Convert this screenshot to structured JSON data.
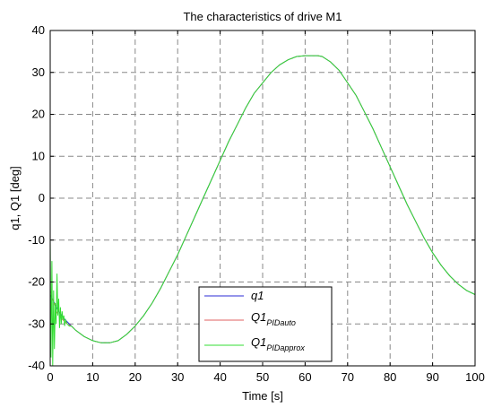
{
  "chart_data": {
    "type": "line",
    "title": "The characteristics of drive M1",
    "xlabel": "Time [s]",
    "ylabel": "q1, Q1 [deg]",
    "xlim": [
      0,
      100
    ],
    "ylim": [
      -40,
      40
    ],
    "xticks": [
      0,
      10,
      20,
      30,
      40,
      50,
      60,
      70,
      80,
      90,
      100
    ],
    "yticks": [
      -40,
      -30,
      -20,
      -10,
      0,
      10,
      20,
      30,
      40
    ],
    "grid": true,
    "legend_position": "bottom-center",
    "series": [
      {
        "name": "q1",
        "legend_main": "q1",
        "legend_sub": "",
        "color": "#2b2bd6",
        "x": [
          0,
          1,
          2,
          3,
          4,
          5,
          6,
          8,
          10,
          12,
          14,
          16,
          18,
          20,
          22,
          24,
          26,
          28,
          30,
          32,
          34,
          36,
          38,
          40,
          42,
          44,
          46,
          48,
          50,
          52,
          54,
          56,
          58,
          60,
          62,
          63,
          64,
          66,
          68,
          70,
          72,
          74,
          76,
          78,
          80,
          82,
          84,
          86,
          88,
          90,
          92,
          94,
          96,
          98,
          100
        ],
        "y": [
          -23,
          -25,
          -27,
          -28.5,
          -29.5,
          -30.5,
          -31.5,
          -33,
          -34,
          -34.5,
          -34.5,
          -34,
          -32.5,
          -30.5,
          -28,
          -25,
          -21.5,
          -17.5,
          -13.5,
          -9,
          -4.5,
          0,
          4.5,
          9,
          13.5,
          17.5,
          21.5,
          25,
          27.5,
          30,
          31.8,
          33,
          33.8,
          34,
          34,
          34,
          33.8,
          32.5,
          30.5,
          27.5,
          24.5,
          20.5,
          16.5,
          12,
          7.5,
          3,
          -1.5,
          -5.5,
          -9.5,
          -13,
          -16,
          -18.5,
          -20.5,
          -22,
          -23
        ]
      },
      {
        "name": "Q1 PIDauto",
        "legend_main": "Q1",
        "legend_sub": "PIDauto",
        "color": "#e06060",
        "x": [
          0,
          0.5,
          1,
          1.5,
          2,
          3,
          4,
          5,
          6,
          8,
          10,
          12,
          14,
          16,
          18,
          20,
          22,
          24,
          26,
          28,
          30,
          32,
          34,
          36,
          38,
          40,
          42,
          44,
          46,
          48,
          50,
          52,
          54,
          56,
          58,
          60,
          62,
          63,
          64,
          66,
          68,
          70,
          72,
          74,
          76,
          78,
          80,
          82,
          84,
          86,
          88,
          90,
          92,
          94,
          96,
          98,
          100
        ],
        "y": [
          -22,
          -24,
          -25,
          -27,
          -28,
          -29,
          -30,
          -30.5,
          -31.5,
          -33,
          -34,
          -34.5,
          -34.5,
          -34,
          -32.5,
          -30.5,
          -28,
          -25,
          -21.5,
          -17.5,
          -13.5,
          -9,
          -4.5,
          0,
          4.5,
          9,
          13.5,
          17.5,
          21.5,
          25,
          27.5,
          30,
          31.8,
          33,
          33.8,
          34,
          34,
          34,
          33.8,
          32.5,
          30.5,
          27.5,
          24.5,
          20.5,
          16.5,
          12,
          7.5,
          3,
          -1.5,
          -5.5,
          -9.5,
          -13,
          -16,
          -18.5,
          -20.5,
          -22,
          -23
        ]
      },
      {
        "name": "Q1 PIDapprox",
        "legend_main": "Q1",
        "legend_sub": "PIDapprox",
        "color": "#33dd33",
        "x": [
          0,
          0.2,
          0.4,
          0.6,
          0.8,
          1,
          1.2,
          1.4,
          1.6,
          1.8,
          2,
          2.2,
          2.4,
          2.6,
          2.8,
          3,
          3.2,
          3.4,
          3.6,
          4,
          4.5,
          5,
          6,
          8,
          10,
          12,
          14,
          16,
          18,
          20,
          22,
          24,
          26,
          28,
          30,
          32,
          34,
          36,
          38,
          40,
          42,
          44,
          46,
          48,
          50,
          52,
          54,
          56,
          58,
          60,
          62,
          63,
          64,
          66,
          68,
          70,
          72,
          74,
          76,
          78,
          80,
          82,
          84,
          86,
          88,
          90,
          92,
          94,
          96,
          98,
          100
        ],
        "y": [
          -10,
          -38,
          -15,
          -40,
          -22,
          -36,
          -25,
          -30,
          -18,
          -28,
          -24,
          -31,
          -26,
          -30,
          -27,
          -29,
          -28,
          -30.5,
          -29,
          -30,
          -30.5,
          -30.5,
          -31.5,
          -33,
          -34,
          -34.5,
          -34.5,
          -34,
          -32.5,
          -30.5,
          -28,
          -25,
          -21.5,
          -17.5,
          -13.5,
          -9,
          -4.5,
          0,
          4.5,
          9,
          13.5,
          17.5,
          21.5,
          25,
          27.5,
          30,
          31.8,
          33,
          33.8,
          34,
          34,
          34,
          33.8,
          32.5,
          30.5,
          27.5,
          24.5,
          20.5,
          16.5,
          12,
          7.5,
          3,
          -1.5,
          -5.5,
          -9.5,
          -13,
          -16,
          -18.5,
          -20.5,
          -22,
          -23
        ]
      }
    ]
  }
}
